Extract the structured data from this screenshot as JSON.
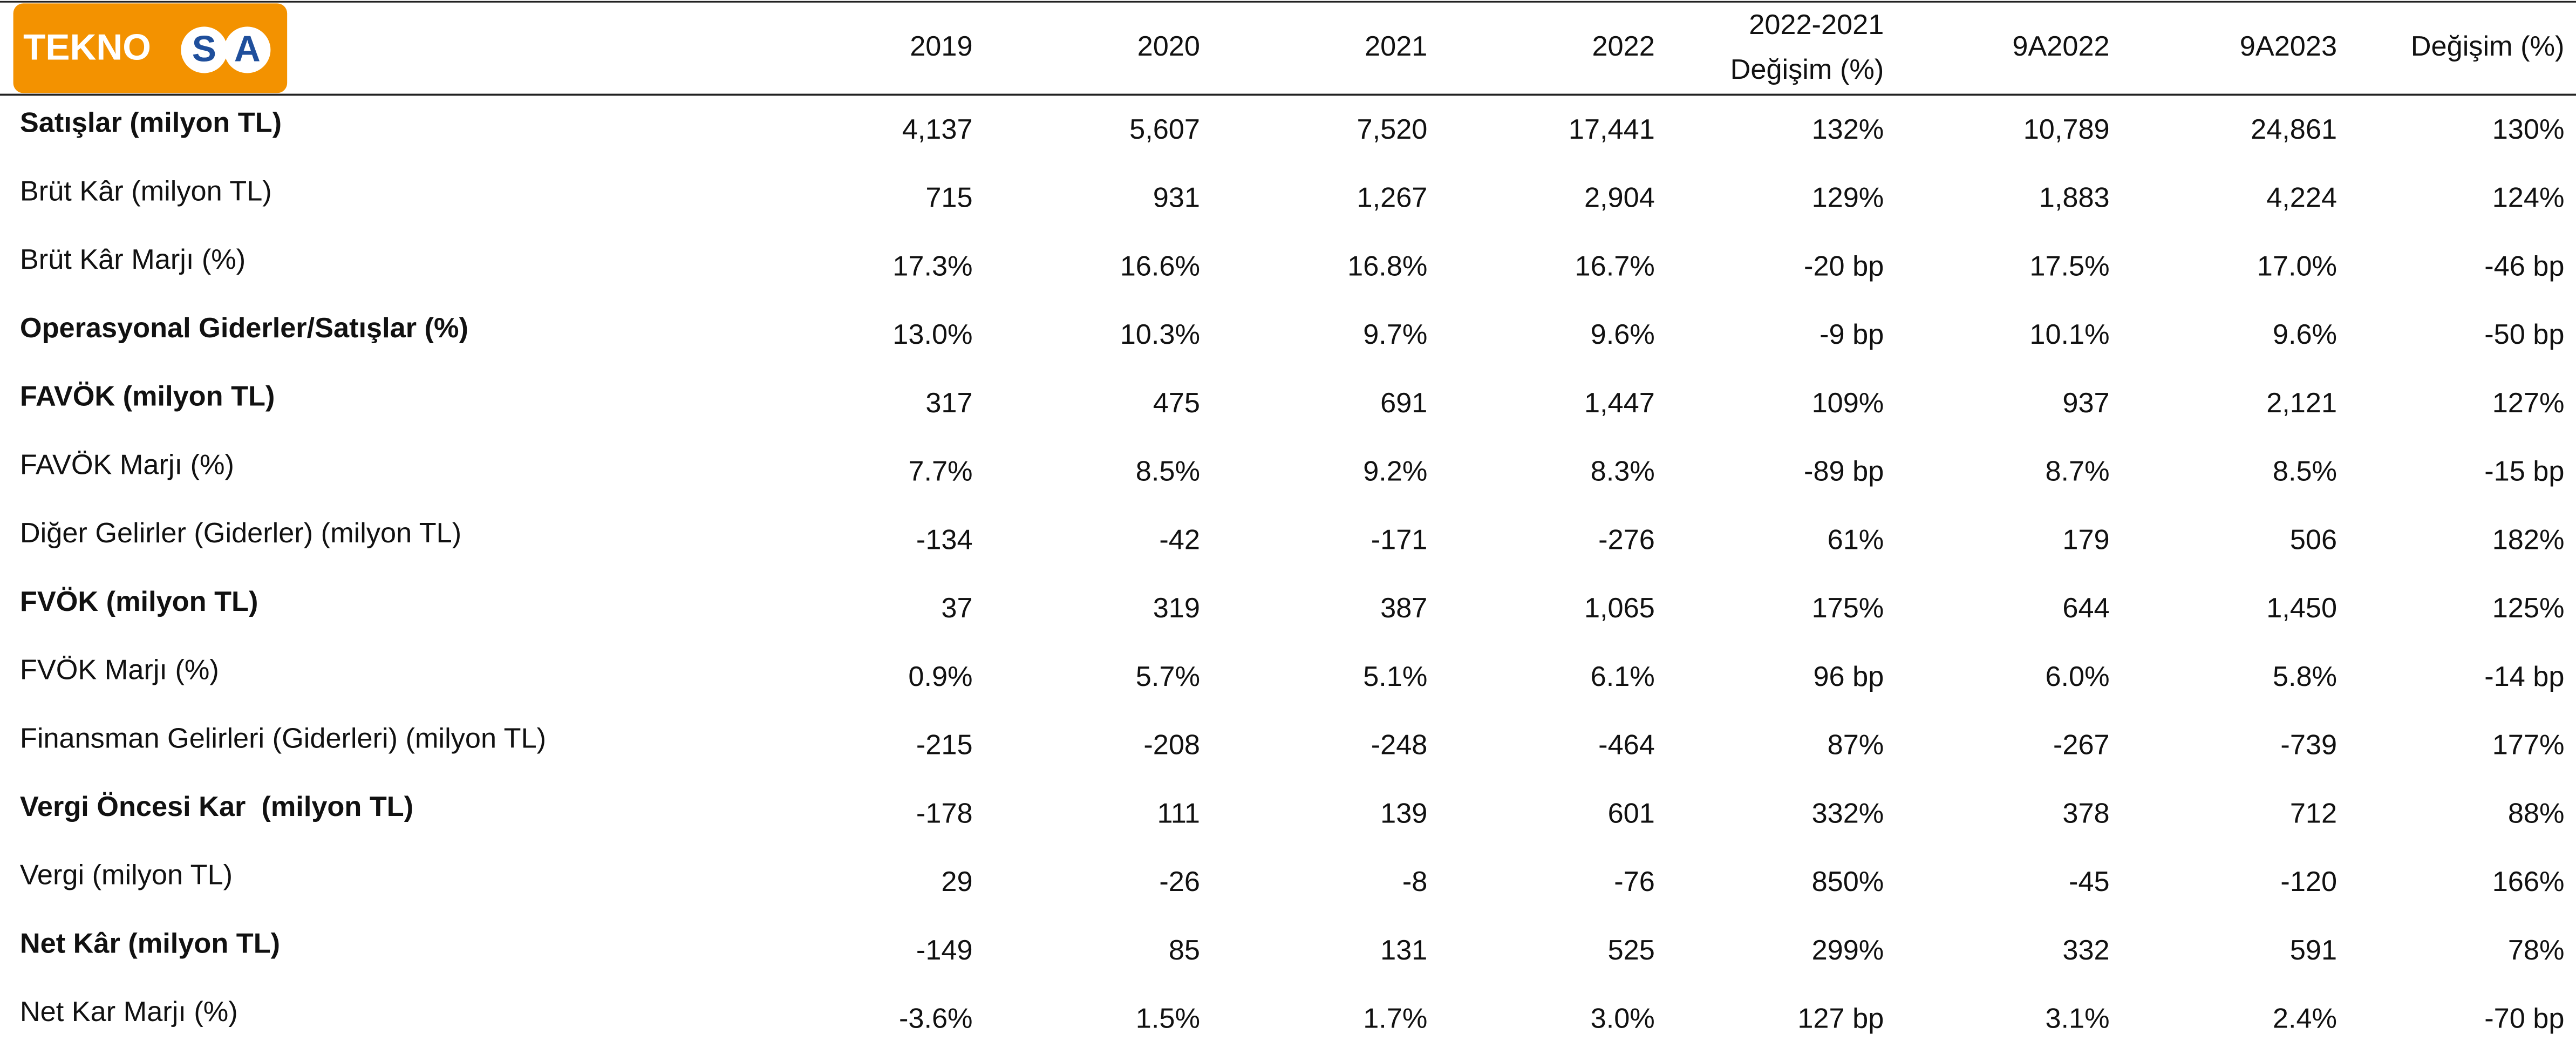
{
  "logo": {
    "text": "TEKNO",
    "circled": [
      "S",
      "A"
    ]
  },
  "table": {
    "columns": [
      [
        "2019"
      ],
      [
        "2020"
      ],
      [
        "2021"
      ],
      [
        "2022"
      ],
      [
        "2022-2021",
        "Değişim (%)"
      ],
      [
        "9A2022"
      ],
      [
        "9A2023"
      ],
      [
        "Değişim (%)"
      ]
    ],
    "rows": [
      {
        "label": "Satışlar (milyon TL)",
        "bold": true,
        "cells": [
          "4,137",
          "5,607",
          "7,520",
          "17,441",
          "132%",
          "10,789",
          "24,861",
          "130%"
        ]
      },
      {
        "label": "Brüt Kâr (milyon TL)",
        "bold": false,
        "cells": [
          "715",
          "931",
          "1,267",
          "2,904",
          "129%",
          "1,883",
          "4,224",
          "124%"
        ]
      },
      {
        "label": "Brüt Kâr Marjı (%)",
        "bold": false,
        "cells": [
          "17.3%",
          "16.6%",
          "16.8%",
          "16.7%",
          "-20 bp",
          "17.5%",
          "17.0%",
          "-46 bp"
        ]
      },
      {
        "label": "Operasyonal Giderler/Satışlar (%)",
        "bold": true,
        "cells": [
          "13.0%",
          "10.3%",
          "9.7%",
          "9.6%",
          "-9 bp",
          "10.1%",
          "9.6%",
          "-50 bp"
        ]
      },
      {
        "label": "FAVÖK (milyon TL)",
        "bold": true,
        "cells": [
          "317",
          "475",
          "691",
          "1,447",
          "109%",
          "937",
          "2,121",
          "127%"
        ]
      },
      {
        "label": "FAVÖK Marjı (%)",
        "bold": false,
        "cells": [
          "7.7%",
          "8.5%",
          "9.2%",
          "8.3%",
          "-89 bp",
          "8.7%",
          "8.5%",
          "-15 bp"
        ]
      },
      {
        "label": "Diğer Gelirler (Giderler) (milyon TL)",
        "bold": false,
        "cells": [
          "-134",
          "-42",
          "-171",
          "-276",
          "61%",
          "179",
          "506",
          "182%"
        ]
      },
      {
        "label": "FVÖK (milyon TL)",
        "bold": true,
        "cells": [
          "37",
          "319",
          "387",
          "1,065",
          "175%",
          "644",
          "1,450",
          "125%"
        ]
      },
      {
        "label": "FVÖK Marjı (%)",
        "bold": false,
        "cells": [
          "0.9%",
          "5.7%",
          "5.1%",
          "6.1%",
          "96 bp",
          "6.0%",
          "5.8%",
          "-14 bp"
        ]
      },
      {
        "label": "Finansman Gelirleri (Giderleri) (milyon TL)",
        "bold": false,
        "cells": [
          "-215",
          "-208",
          "-248",
          "-464",
          "87%",
          "-267",
          "-739",
          "177%"
        ]
      },
      {
        "label": "Vergi Öncesi Kar  (milyon TL)",
        "bold": true,
        "cells": [
          "-178",
          "111",
          "139",
          "601",
          "332%",
          "378",
          "712",
          "88%"
        ]
      },
      {
        "label": "Vergi (milyon TL)",
        "bold": false,
        "cells": [
          "29",
          "-26",
          "-8",
          "-76",
          "850%",
          "-45",
          "-120",
          "166%"
        ]
      },
      {
        "label": "Net Kâr (milyon TL)",
        "bold": true,
        "cells": [
          "-149",
          "85",
          "131",
          "525",
          "299%",
          "332",
          "591",
          "78%"
        ]
      },
      {
        "label": "Net Kar Marjı (%)",
        "bold": false,
        "cells": [
          "-3.6%",
          "1.5%",
          "1.7%",
          "3.0%",
          "127 bp",
          "3.1%",
          "2.4%",
          "-70 bp"
        ]
      }
    ]
  }
}
